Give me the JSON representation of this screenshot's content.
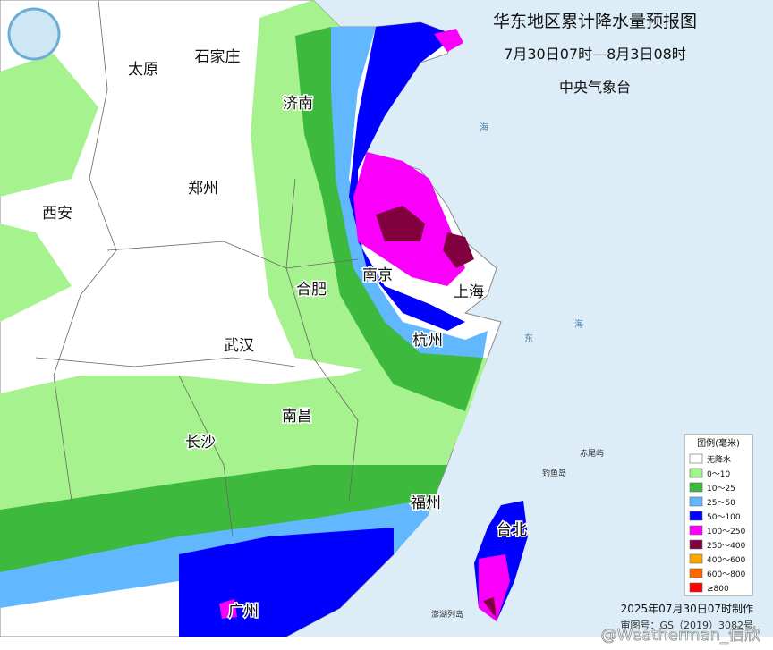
{
  "header": {
    "title": "华东地区累计降水量预报图",
    "period": "7月30日07时—8月3日08时",
    "agency": "中央气象台"
  },
  "cities": [
    "太原",
    "石家庄",
    "济南",
    "郑州",
    "西安",
    "合肥",
    "南京",
    "上海",
    "武汉",
    "杭州",
    "南昌",
    "长沙",
    "福州",
    "台北",
    "广州"
  ],
  "places": [
    "赤尾屿",
    "钓鱼岛",
    "澎湖列岛"
  ],
  "sea_labels": [
    "海",
    "东",
    "海"
  ],
  "legend": {
    "title": "图例(毫米)",
    "items": [
      {
        "label": "无降水",
        "color": "#ffffff"
      },
      {
        "label": "0～10",
        "color": "#a6f28f"
      },
      {
        "label": "10～25",
        "color": "#3dba3d"
      },
      {
        "label": "25～50",
        "color": "#61b8ff"
      },
      {
        "label": "50～100",
        "color": "#0000fe"
      },
      {
        "label": "100～250",
        "color": "#fa00fa"
      },
      {
        "label": "250～400",
        "color": "#800040"
      },
      {
        "label": "400～600",
        "color": "#ffaa00"
      },
      {
        "label": "600～800",
        "color": "#ff6600"
      },
      {
        "label": "≥800",
        "color": "#ff0000"
      }
    ]
  },
  "footer": {
    "made": "2025年07月30日07时制作",
    "approval": "审图号：GS（2019）3082号"
  },
  "watermark": "@Weatherman_信欣"
}
